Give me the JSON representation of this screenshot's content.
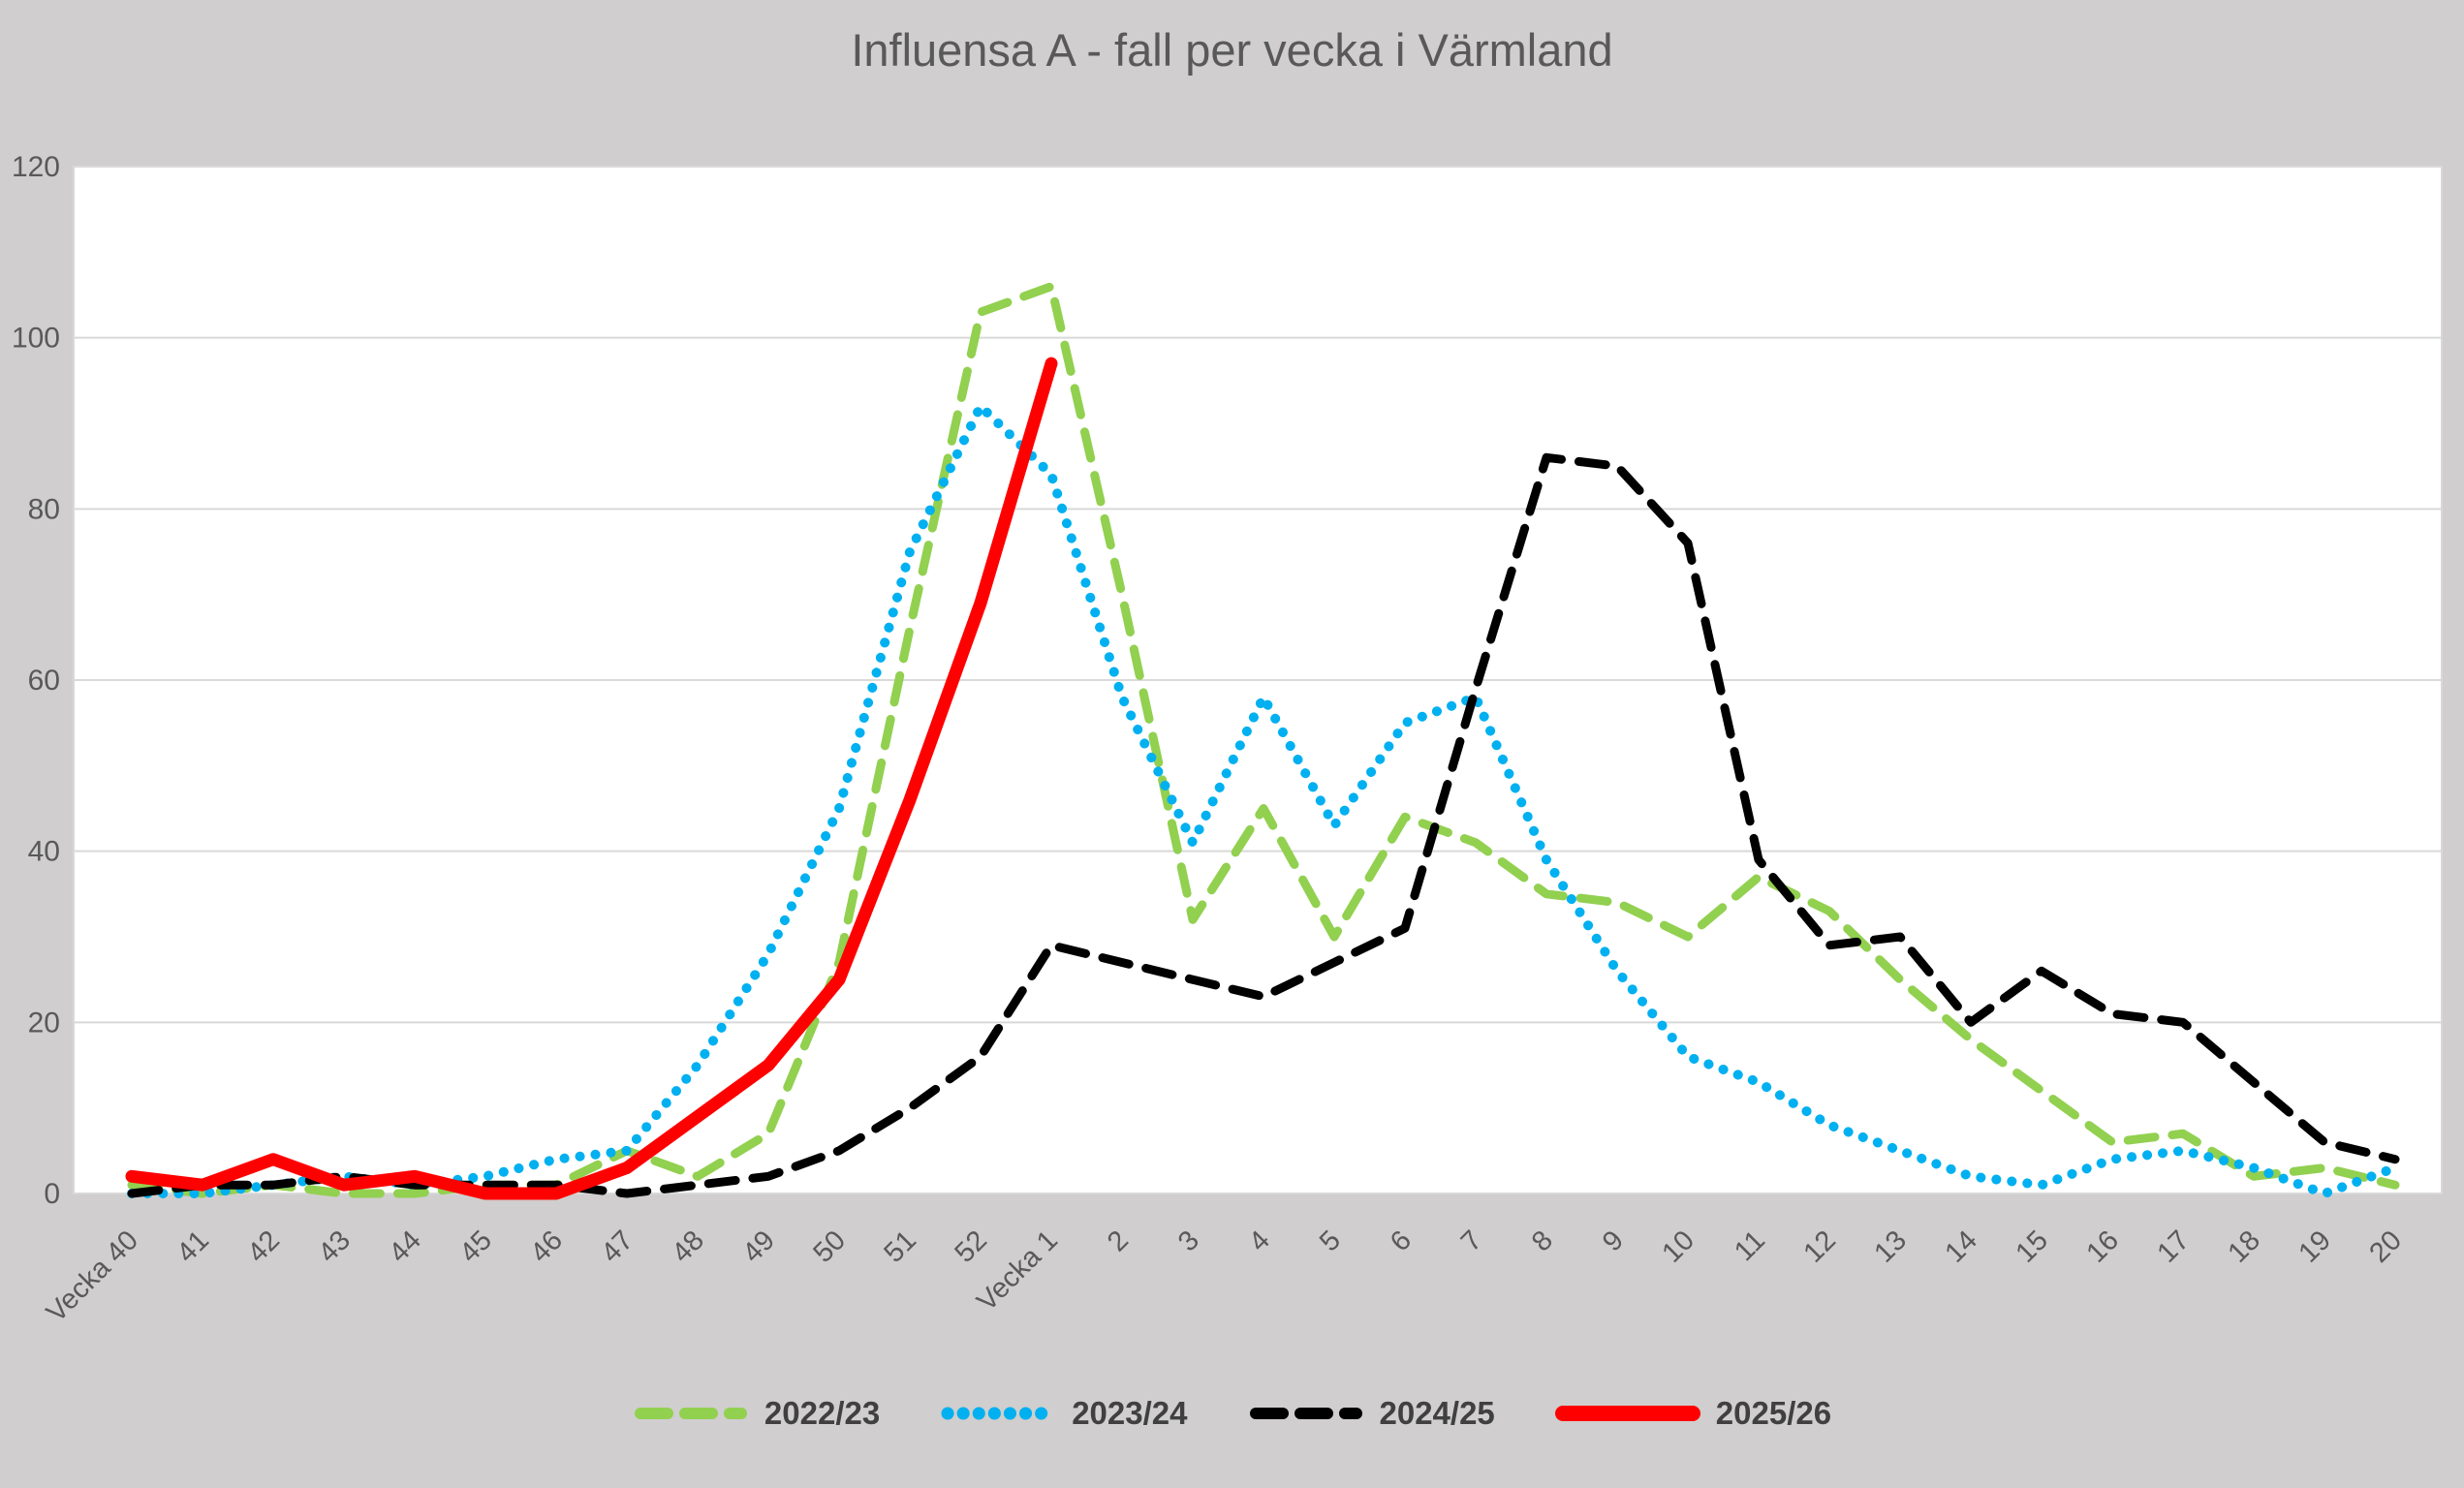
{
  "styles": {
    "background": "#D0CECE",
    "plot_background": "#FFFFFF",
    "gridline_color": "#D9D9D9",
    "axis_text_color": "#595959",
    "title_color": "#595959",
    "legend_text_color": "#404040"
  },
  "chart_data": {
    "type": "line",
    "title": "Influensa A - fall per vecka i Värmland",
    "xlabel": "",
    "ylabel": "",
    "grid": "horizontal",
    "legend_position": "bottom",
    "x_axis": {
      "categories": [
        "Vecka 40",
        "41",
        "42",
        "43",
        "44",
        "45",
        "46",
        "47",
        "48",
        "49",
        "50",
        "51",
        "52",
        "Vecka 1",
        "2",
        "3",
        "4",
        "5",
        "6",
        "7",
        "8",
        "9",
        "10",
        "11",
        "12",
        "13",
        "14",
        "15",
        "16",
        "17",
        "18",
        "19",
        "20"
      ],
      "label_rotation_deg": -45
    },
    "y_axis": {
      "min": 0,
      "max": 120,
      "tick_step": 20,
      "ticks": [
        0,
        20,
        40,
        60,
        80,
        100,
        120
      ]
    },
    "series": [
      {
        "name": "2022/23",
        "color": "#92D050",
        "line_style": "dashed",
        "values": [
          1,
          0,
          1,
          0,
          0,
          1,
          1,
          5,
          2,
          7,
          27,
          66,
          103,
          106,
          70,
          32,
          45,
          30,
          44,
          41,
          35,
          34,
          30,
          37,
          33,
          25,
          18,
          12,
          6,
          7,
          2,
          3,
          1
        ]
      },
      {
        "name": "2023/24",
        "color": "#00B0F0",
        "line_style": "dotted",
        "values": [
          0,
          0,
          1,
          2,
          1,
          2,
          4,
          5,
          15,
          28,
          45,
          75,
          92,
          84,
          58,
          41,
          58,
          43,
          55,
          58,
          39,
          26,
          16,
          13,
          8,
          5,
          2,
          1,
          4,
          5,
          3,
          0,
          3
        ]
      },
      {
        "name": "2024/25",
        "color": "#000000",
        "line_style": "dashed",
        "values": [
          0,
          1,
          1,
          2,
          1,
          1,
          1,
          0,
          1,
          2,
          5,
          10,
          16,
          29,
          27,
          25,
          23,
          27,
          31,
          59,
          86,
          85,
          76,
          39,
          29,
          30,
          20,
          26,
          21,
          20,
          13,
          6,
          4
        ]
      },
      {
        "name": "2025/26",
        "color": "#FF0000",
        "line_style": "solid",
        "values": [
          2,
          1,
          4,
          1,
          2,
          0,
          0,
          3,
          9,
          15,
          25,
          46,
          69,
          97,
          null,
          null,
          null,
          null,
          null,
          null,
          null,
          null,
          null,
          null,
          null,
          null,
          null,
          null,
          null,
          null,
          null,
          null,
          null
        ]
      }
    ]
  }
}
